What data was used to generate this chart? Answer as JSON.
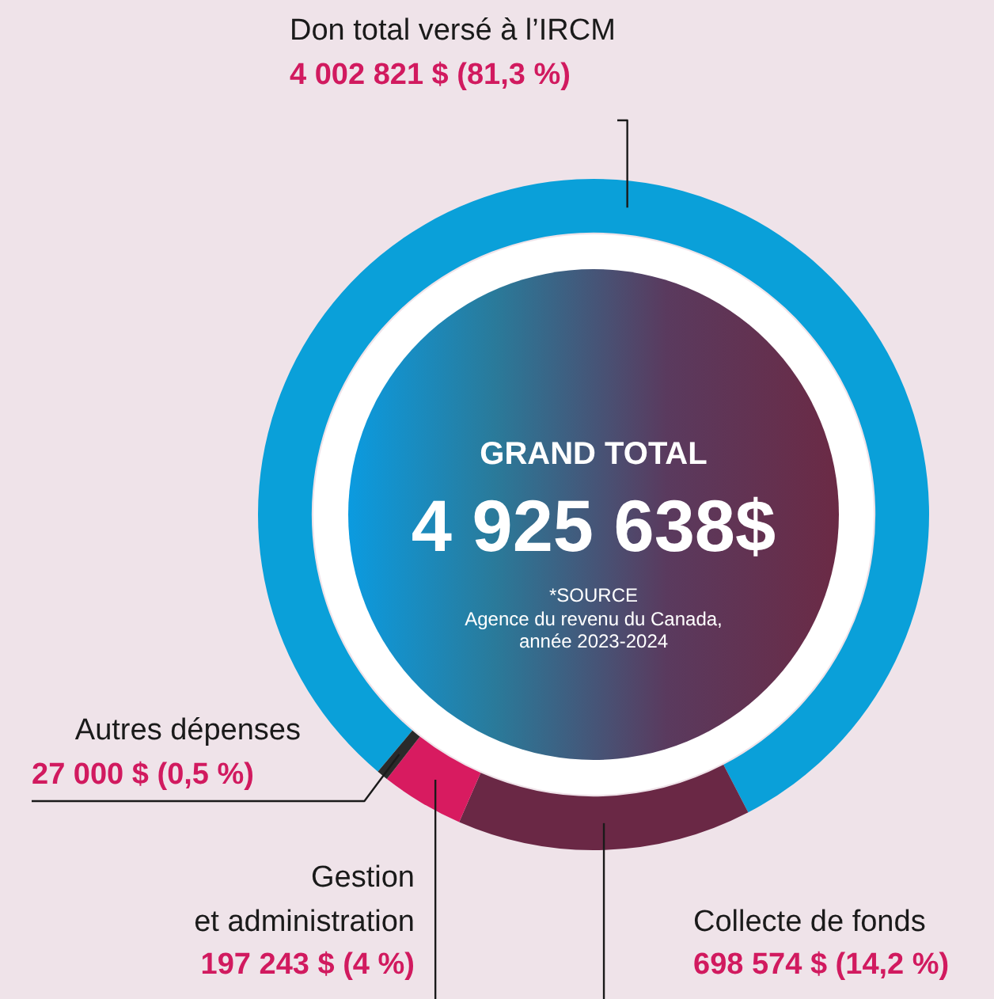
{
  "chart_data": {
    "type": "donut",
    "categories": [
      "Don total versé à l’IRCM",
      "Collecte de fonds",
      "Gestion et administration",
      "Autres dépenses"
    ],
    "values": [
      4002821,
      698574,
      197243,
      27000
    ],
    "value_labels": [
      "4 002 821 $ (81,3 %)",
      "698 574 $ (14,2 %)",
      "197 243 $ (4 %)",
      "27 000 $ (0,5 %)"
    ],
    "colors": [
      "#0aa0d9",
      "#6a2845",
      "#d81b60",
      "#2a2a2a"
    ],
    "legend": false,
    "annotations": [
      "GRAND TOTAL",
      "4 925 638$",
      "*SOURCE",
      "Agence du revenu du Canada,",
      "année 2023-2024"
    ]
  }
}
